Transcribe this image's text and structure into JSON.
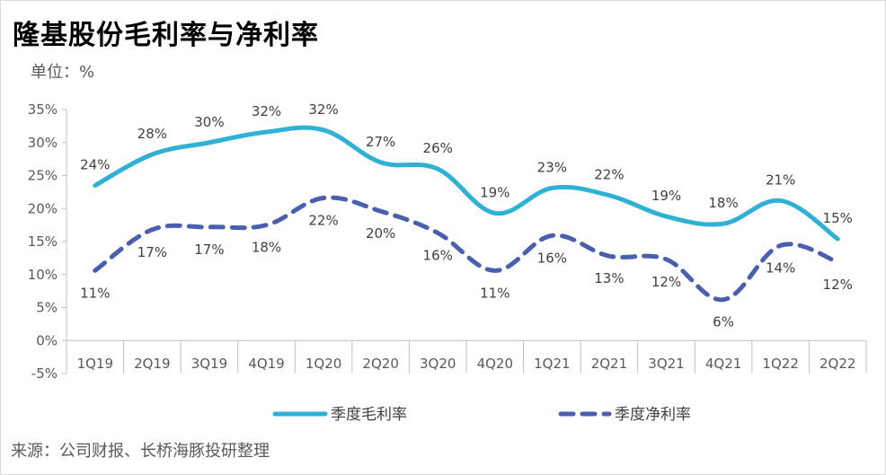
{
  "title": "隆基股份毛利率与净利率",
  "unit_label": "单位：%",
  "source": "来源：公司财报、长桥海豚投研整理",
  "colors": {
    "gross": "#31b0d5",
    "net": "#4a5fae",
    "axis": "#bfbfbf"
  },
  "chart_data": {
    "type": "line",
    "title": "隆基股份毛利率与净利率",
    "ylabel": "单位：%",
    "ylim": [
      -5,
      35
    ],
    "yticks": [
      -5,
      0,
      5,
      10,
      15,
      20,
      25,
      30,
      35
    ],
    "ytick_labels": [
      "-5%",
      "0%",
      "5%",
      "10%",
      "15%",
      "20%",
      "25%",
      "30%",
      "35%"
    ],
    "categories": [
      "1Q19",
      "2Q19",
      "3Q19",
      "4Q19",
      "1Q20",
      "2Q20",
      "3Q20",
      "4Q20",
      "1Q21",
      "2Q21",
      "3Q21",
      "4Q21",
      "1Q22",
      "2Q22"
    ],
    "legend_position": "bottom",
    "grid": false,
    "series": [
      {
        "name": "季度毛利率",
        "style": "solid",
        "values": [
          23.5,
          28.2,
          30.0,
          31.6,
          31.9,
          27.0,
          26.0,
          19.3,
          23.1,
          22.0,
          18.8,
          17.7,
          21.2,
          15.4
        ],
        "labels": [
          "24%",
          "28%",
          "30%",
          "32%",
          "32%",
          "27%",
          "26%",
          "19%",
          "23%",
          "22%",
          "19%",
          "18%",
          "21%",
          "15%"
        ]
      },
      {
        "name": "季度净利率",
        "style": "dashed",
        "values": [
          10.6,
          16.8,
          17.2,
          17.5,
          21.6,
          19.6,
          16.3,
          10.6,
          15.9,
          12.8,
          12.3,
          6.2,
          14.4,
          11.9
        ],
        "labels": [
          "11%",
          "17%",
          "17%",
          "18%",
          "22%",
          "20%",
          "16%",
          "11%",
          "16%",
          "13%",
          "12%",
          "6%",
          "14%",
          "12%"
        ]
      }
    ]
  }
}
